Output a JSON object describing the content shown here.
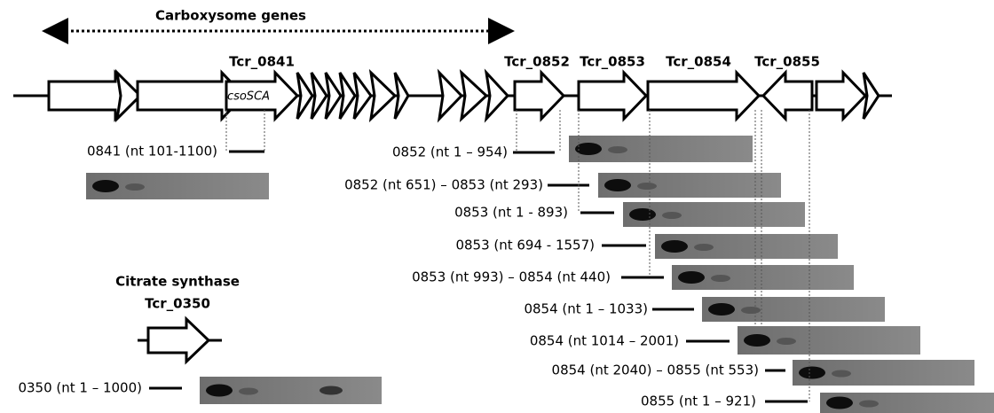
{
  "header": {
    "title": "Carboxysome genes"
  },
  "gene_labels": [
    "Tcr_0841",
    "Tcr_0852",
    "Tcr_0853",
    "Tcr_0854",
    "Tcr_0855"
  ],
  "inner_label": "csoSCA",
  "citrate": {
    "title": "Citrate synthase",
    "gene": "Tcr_0350"
  },
  "amplicons": [
    "0841 (nt 101-1100)",
    "0852 (nt 1 – 954)",
    "0852 (nt 651) – 0853 (nt 293)",
    "0853 (nt 1 - 893)",
    "0853 (nt 694 - 1557)",
    "0853 (nt 993) – 0854 (nt 440)",
    "0854 (nt 1 – 1033)",
    "0854 (nt 1014 – 2001)",
    "0854 (nt 2040) – 0855 (nt 553)",
    "0855 (nt 1 – 921)",
    "0350 (nt 1 – 1000)"
  ]
}
